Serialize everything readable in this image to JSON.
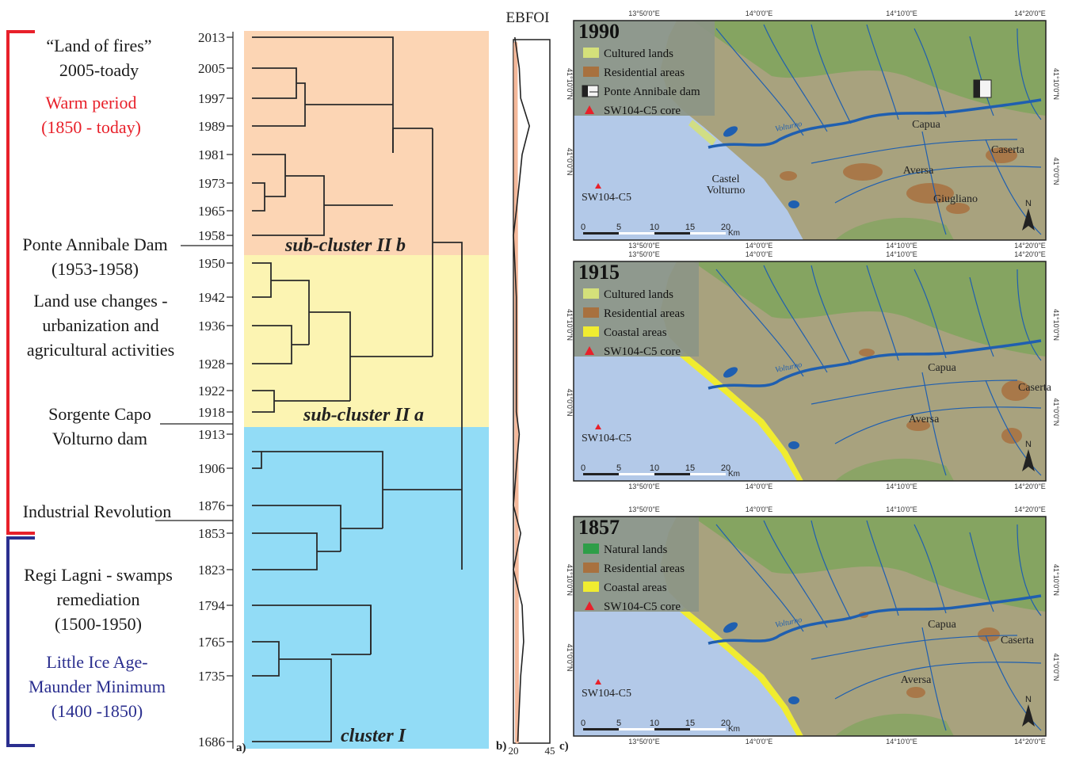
{
  "dendrogram": {
    "years": [
      "2013",
      "2005",
      "1997",
      "1989",
      "1981",
      "1973",
      "1965",
      "1958",
      "1950",
      "1942",
      "1936",
      "1928",
      "1922",
      "1918",
      "1913",
      "1906",
      "1876",
      "1853",
      "1823",
      "1794",
      "1765",
      "1735",
      "1686"
    ],
    "clusters": [
      {
        "label": "sub-cluster II b",
        "color": "#fcd5b4"
      },
      {
        "label": "sub-cluster II a",
        "color": "#fcf4b2"
      },
      {
        "label": "cluster I",
        "color": "#92dcf6"
      }
    ],
    "panel_letter": "a)"
  },
  "events": {
    "land_of_fires": "“Land of fires”\n2005-toady",
    "warm_period": "Warm period\n(1850 - today)",
    "ponte_annibale": "Ponte Annibale Dam\n(1953-1958)",
    "land_use": "Land use changes -\nurbanization and\nagricultural activities",
    "sorgente": "Sorgente Capo\nVolturno dam",
    "industrial": "Industrial Revolution",
    "regi_lagni": "Regi Lagni - swamps\nremediation\n(1500-1950)",
    "little_ice_age": "Little Ice Age-\nMaunder Minimum\n(1400 -1850)"
  },
  "period_colors": {
    "warm": "#e8202a",
    "cold": "#2b2f8f"
  },
  "ebfoi": {
    "title": "EBFOI",
    "panel_letter": "b)",
    "axis_min": "20",
    "axis_max": "45",
    "values": [
      21,
      24,
      25,
      31,
      26,
      24,
      22,
      20,
      21,
      22,
      22,
      22,
      22,
      22,
      24,
      22,
      20,
      25,
      20,
      26,
      27,
      25,
      23
    ]
  },
  "maps": {
    "panel_letter": "c)",
    "lon_labels": [
      "13°50'0\"E",
      "14°0'0\"E",
      "14°10'0\"E",
      "14°20'0\"E"
    ],
    "lat_label": "41°0'0\"N",
    "lat_label_2": "41°10'0\"N",
    "scale_ticks": [
      "0",
      "5",
      "10",
      "15",
      "20"
    ],
    "scale_unit": "Km",
    "core_label": "SW104-C5",
    "panels": [
      {
        "year": "1990",
        "legend": [
          {
            "label": "Cultured lands",
            "type": "cultured"
          },
          {
            "label": "Residential areas",
            "type": "residential"
          },
          {
            "label": "Ponte Annibale dam",
            "type": "dam"
          },
          {
            "label": "SW104-C5 core",
            "type": "core"
          }
        ],
        "towns": [
          "Capua",
          "Caserta",
          "Aversa",
          "Castel\nVolturno",
          "Giugliano"
        ],
        "river": "Volturno"
      },
      {
        "year": "1915",
        "legend": [
          {
            "label": "Cultured lands",
            "type": "cultured"
          },
          {
            "label": "Residential areas",
            "type": "residential"
          },
          {
            "label": "Coastal areas",
            "type": "coastal"
          },
          {
            "label": "SW104-C5 core",
            "type": "core"
          }
        ],
        "towns": [
          "Capua",
          "Caserta",
          "Aversa"
        ],
        "river": "Volturno"
      },
      {
        "year": "1857",
        "legend": [
          {
            "label": "Natural lands",
            "type": "natural"
          },
          {
            "label": "Residential areas",
            "type": "residential"
          },
          {
            "label": "Coastal areas",
            "type": "coastal"
          },
          {
            "label": "SW104-C5 core",
            "type": "core"
          }
        ],
        "towns": [
          "Capua",
          "Caserta",
          "Aversa"
        ],
        "river": "Volturno"
      }
    ],
    "colors": {
      "sea": "#b3c9e8",
      "land": "#a8a27e",
      "cultured": "#d4e07a",
      "residential": "#a8713f",
      "coastal": "#f0ec30",
      "natural": "#2e9e48",
      "river": "#1f5fb0",
      "hills": "#7fa55c",
      "legend_bg": "#8c9586",
      "core": "#e8202a"
    }
  }
}
